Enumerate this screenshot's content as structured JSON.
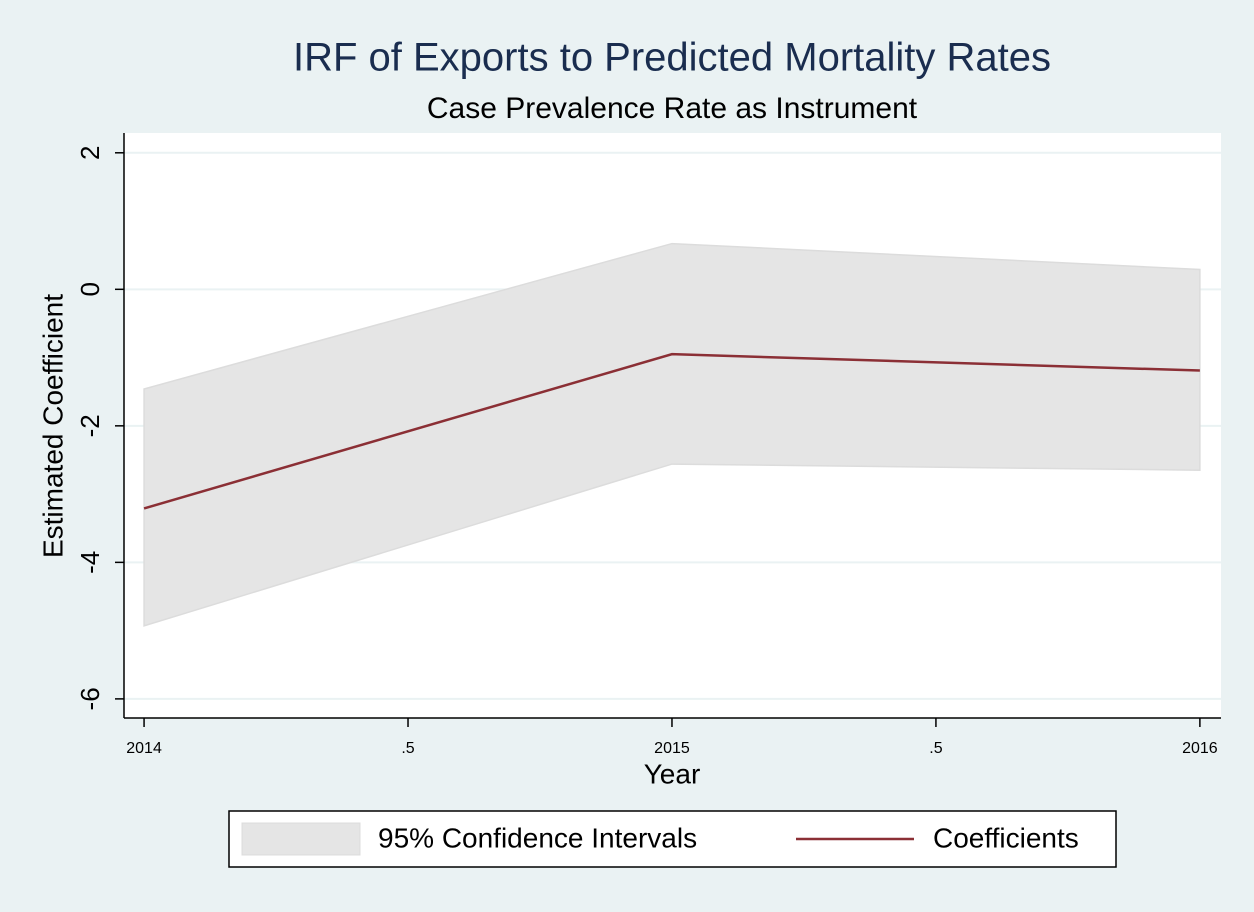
{
  "chart_data": {
    "type": "line",
    "title": "IRF of Exports to Predicted Mortality Rates",
    "subtitle": "Case Prevalence Rate as Instrument",
    "x_label": "Year",
    "y_label": "Estimated Coefficient",
    "x": [
      2014,
      2015,
      2016
    ],
    "series": [
      {
        "name": "95% Confidence Intervals",
        "color": "#e5e5e5",
        "lower": [
          -4.93,
          -2.56,
          -2.65
        ],
        "upper": [
          -1.46,
          0.67,
          0.29
        ]
      },
      {
        "name": "Coefficients",
        "color": "#8b2f35",
        "values": [
          -3.21,
          -0.95,
          -1.19
        ]
      }
    ],
    "xlim": [
      2013.962,
      2016.04
    ],
    "xticks": [
      2014,
      {
        "value": 2014.5,
        "label": ".5"
      },
      2015,
      {
        "value": 2015.5,
        "label": ".5"
      },
      2016
    ],
    "ylim": [
      -6.28,
      2.29
    ],
    "yticks": [
      -6,
      -4,
      -2,
      0,
      2
    ],
    "grid": true,
    "legend": "bottom"
  }
}
